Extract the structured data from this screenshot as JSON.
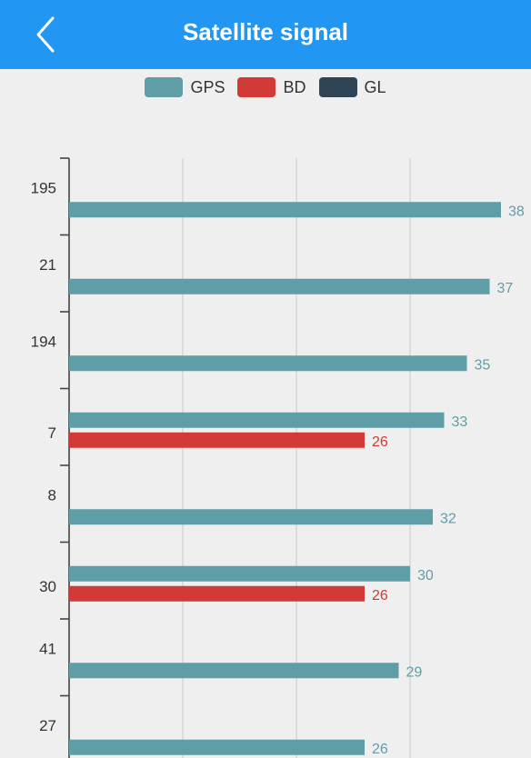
{
  "header": {
    "title": "Satellite signal",
    "back_icon": "chevron-left-icon"
  },
  "colors": {
    "header_bg": "#2196f3",
    "background": "#efefef",
    "gps": "#5f9ea6",
    "bd": "#d13a36",
    "gl": "#2f4455"
  },
  "legend": [
    {
      "key": "gps",
      "label": "GPS"
    },
    {
      "key": "bd",
      "label": "BD"
    },
    {
      "key": "gl",
      "label": "GL"
    }
  ],
  "chart_data": {
    "type": "bar",
    "orientation": "horizontal",
    "categories": [
      "195",
      "21",
      "194",
      "7",
      "8",
      "30",
      "41",
      "27"
    ],
    "series": [
      {
        "name": "GPS",
        "key": "gps",
        "values": [
          38,
          37,
          35,
          33,
          32,
          30,
          29,
          26
        ]
      },
      {
        "name": "BD",
        "key": "bd",
        "values": [
          null,
          null,
          null,
          26,
          null,
          26,
          null,
          null
        ]
      },
      {
        "name": "GL",
        "key": "gl",
        "values": [
          null,
          null,
          null,
          null,
          null,
          null,
          null,
          null
        ]
      }
    ],
    "xlim": [
      0,
      40
    ],
    "x_grid_lines": [
      10,
      20,
      30
    ],
    "grid": true,
    "legend_position": "top-center"
  }
}
